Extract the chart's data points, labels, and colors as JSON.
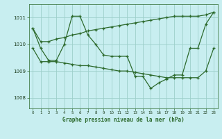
{
  "title": "Graphe pression niveau de la mer (hPa)",
  "bg_color": "#c8eef0",
  "grid_color": "#9dcfca",
  "line_color": "#2d6a2d",
  "xlim": [
    -0.5,
    23.5
  ],
  "ylim": [
    1007.6,
    1011.5
  ],
  "yticks": [
    1008,
    1009,
    1010,
    1011
  ],
  "xticks": [
    0,
    1,
    2,
    3,
    4,
    5,
    6,
    7,
    8,
    9,
    10,
    11,
    12,
    13,
    14,
    15,
    16,
    17,
    18,
    19,
    20,
    21,
    22,
    23
  ],
  "series": {
    "instant": [
      1010.6,
      1009.85,
      1009.4,
      1009.4,
      1010.0,
      1011.05,
      1011.05,
      1010.35,
      1010.0,
      1009.6,
      1009.55,
      1009.55,
      1009.55,
      1008.8,
      1008.8,
      1008.35,
      1008.55,
      1008.7,
      1008.85,
      1008.85,
      1009.85,
      1009.85,
      1010.75,
      1011.2
    ],
    "max": [
      1010.6,
      1010.1,
      1010.1,
      1010.2,
      1010.25,
      1010.35,
      1010.4,
      1010.5,
      1010.55,
      1010.6,
      1010.65,
      1010.7,
      1010.75,
      1010.8,
      1010.85,
      1010.9,
      1010.95,
      1011.0,
      1011.05,
      1011.05,
      1011.05,
      1011.05,
      1011.1,
      1011.2
    ],
    "min": [
      1009.85,
      1009.35,
      1009.35,
      1009.35,
      1009.3,
      1009.25,
      1009.2,
      1009.2,
      1009.15,
      1009.1,
      1009.05,
      1009.0,
      1009.0,
      1008.95,
      1008.9,
      1008.85,
      1008.8,
      1008.75,
      1008.75,
      1008.75,
      1008.75,
      1008.75,
      1009.0,
      1009.85
    ]
  }
}
